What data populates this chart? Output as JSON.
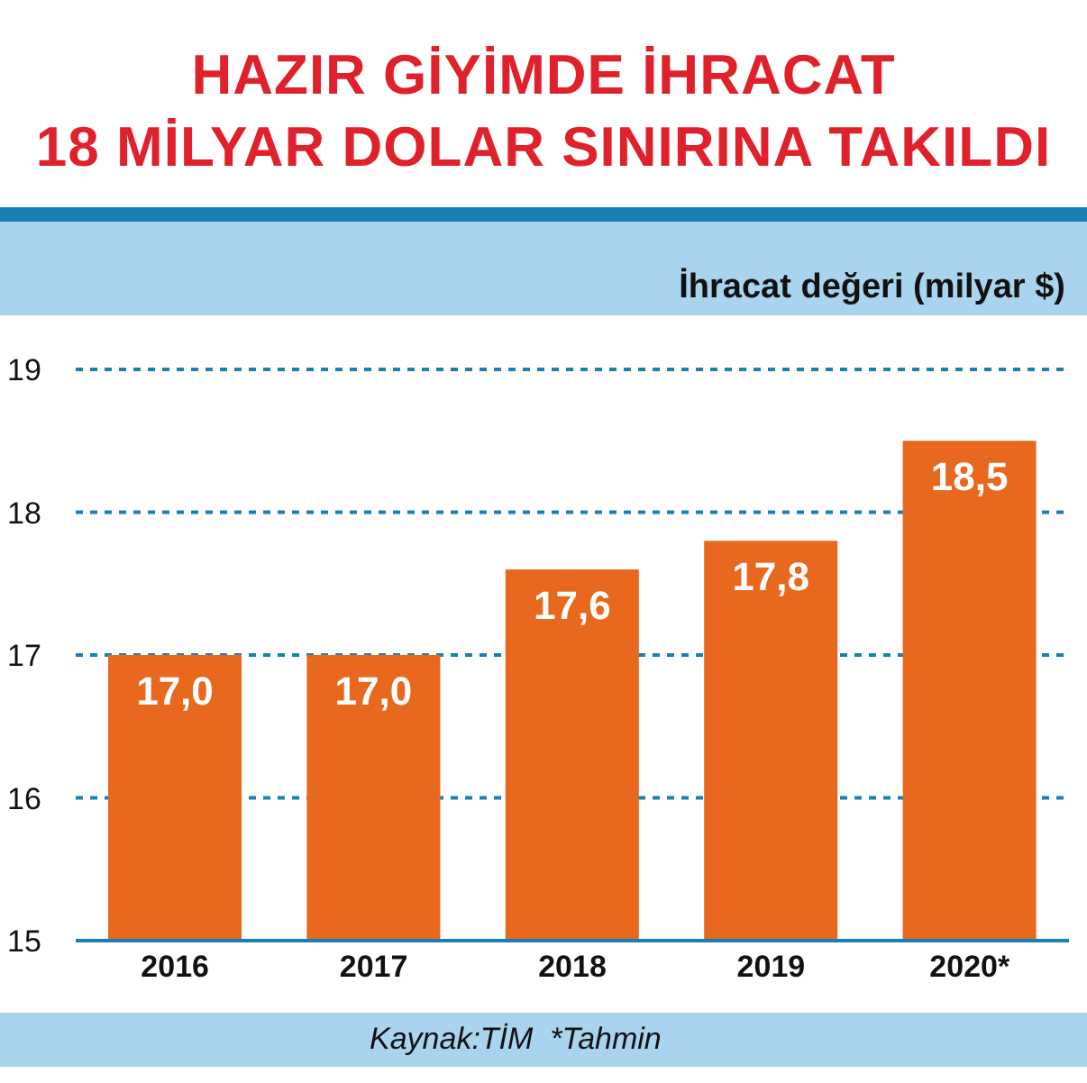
{
  "chart_data": {
    "type": "bar",
    "title": "HAZIR GİYİMDE İHRACAT\n18 MİLYAR DOLAR SINIRINA TAKILDI",
    "ylabel": "İhracat değeri (milyar $)",
    "categories": [
      "2016",
      "2017",
      "2018",
      "2019",
      "2020*"
    ],
    "values": [
      17.0,
      17.0,
      17.6,
      17.8,
      18.5
    ],
    "value_labels": [
      "17,0",
      "17,0",
      "17,6",
      "17,8",
      "18,5"
    ],
    "color": "#e8691e",
    "ylim": [
      15,
      19
    ],
    "yticks": [
      15,
      16,
      17,
      18,
      19
    ],
    "grid": "y",
    "annotations": [
      "Kaynak:TİM  *Tahmin"
    ]
  }
}
